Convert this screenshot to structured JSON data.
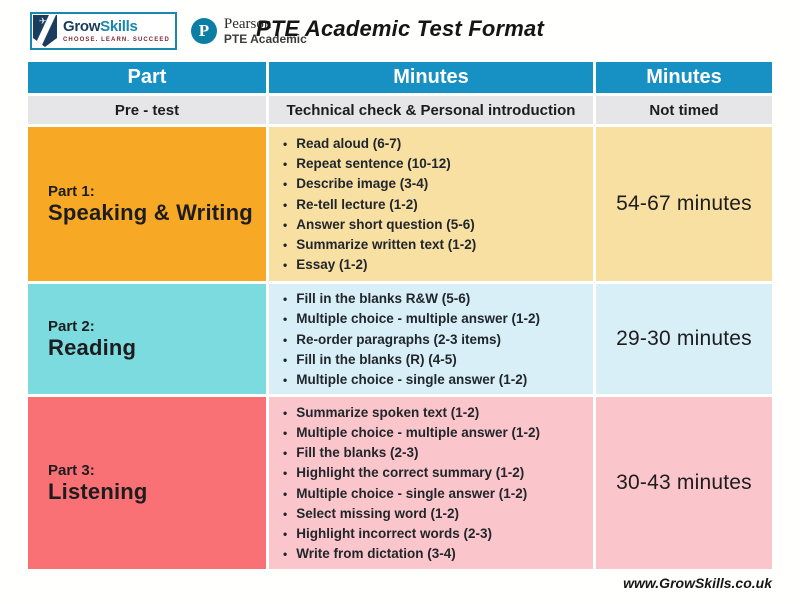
{
  "header": {
    "title": "PTE Academic Test Format",
    "growskills_logo": {
      "word_grow": "Grow",
      "word_skills": "Skills",
      "tagline": "CHOOSE. LEARN. SUCCEED",
      "plane_glyph": "✈"
    },
    "pearson_logo": {
      "monogram": "P",
      "name": "Pearson",
      "subtitle": "PTE Academic"
    }
  },
  "table": {
    "columns": [
      "Part",
      "Minutes",
      "Minutes"
    ],
    "pretest": {
      "part": "Pre - test",
      "tasks": "Technical check & Personal introduction",
      "minutes": "Not timed"
    },
    "rows": [
      {
        "part_label": "Part 1:",
        "part_name": "Speaking & Writing",
        "tasks": [
          "Read aloud (6-7)",
          "Repeat sentence (10-12)",
          "Describe image (3-4)",
          "Re-tell lecture (1-2)",
          "Answer short question (5-6)",
          "Summarize written text (1-2)",
          "Essay (1-2)"
        ],
        "minutes": "54-67 minutes"
      },
      {
        "part_label": "Part 2:",
        "part_name": "Reading",
        "tasks": [
          "Fill in the blanks R&W (5-6)",
          "Multiple choice - multiple answer (1-2)",
          "Re-order paragraphs (2-3 items)",
          "Fill in the blanks (R) (4-5)",
          "Multiple choice - single answer (1-2)"
        ],
        "minutes": "29-30 minutes"
      },
      {
        "part_label": "Part 3:",
        "part_name": "Listening",
        "tasks": [
          "Summarize spoken text (1-2)",
          "Multiple choice - multiple answer (1-2)",
          "Fill the blanks (2-3)",
          "Highlight the correct summary (1-2)",
          "Multiple choice - single answer (1-2)",
          "Select missing word (1-2)",
          "Highlight incorrect words (2-3)",
          "Write from dictation (3-4)"
        ],
        "minutes": "30-43 minutes"
      }
    ]
  },
  "footer": {
    "website": "www.GrowSkills.co.uk"
  },
  "colors": {
    "header_teal": "#1790c4",
    "pretest_gray": "#e6e5e8",
    "part1_head": "#f7a825",
    "part1_body": "#f8dfa2",
    "part2_head": "#7cdbde",
    "part2_body": "#d8eff7",
    "part3_head": "#f97175",
    "part3_body": "#fbc6cb",
    "pearson_teal": "#0d7ea3",
    "growskills_navy": "#1c3c5e",
    "growskills_teal": "#1a87ad"
  }
}
